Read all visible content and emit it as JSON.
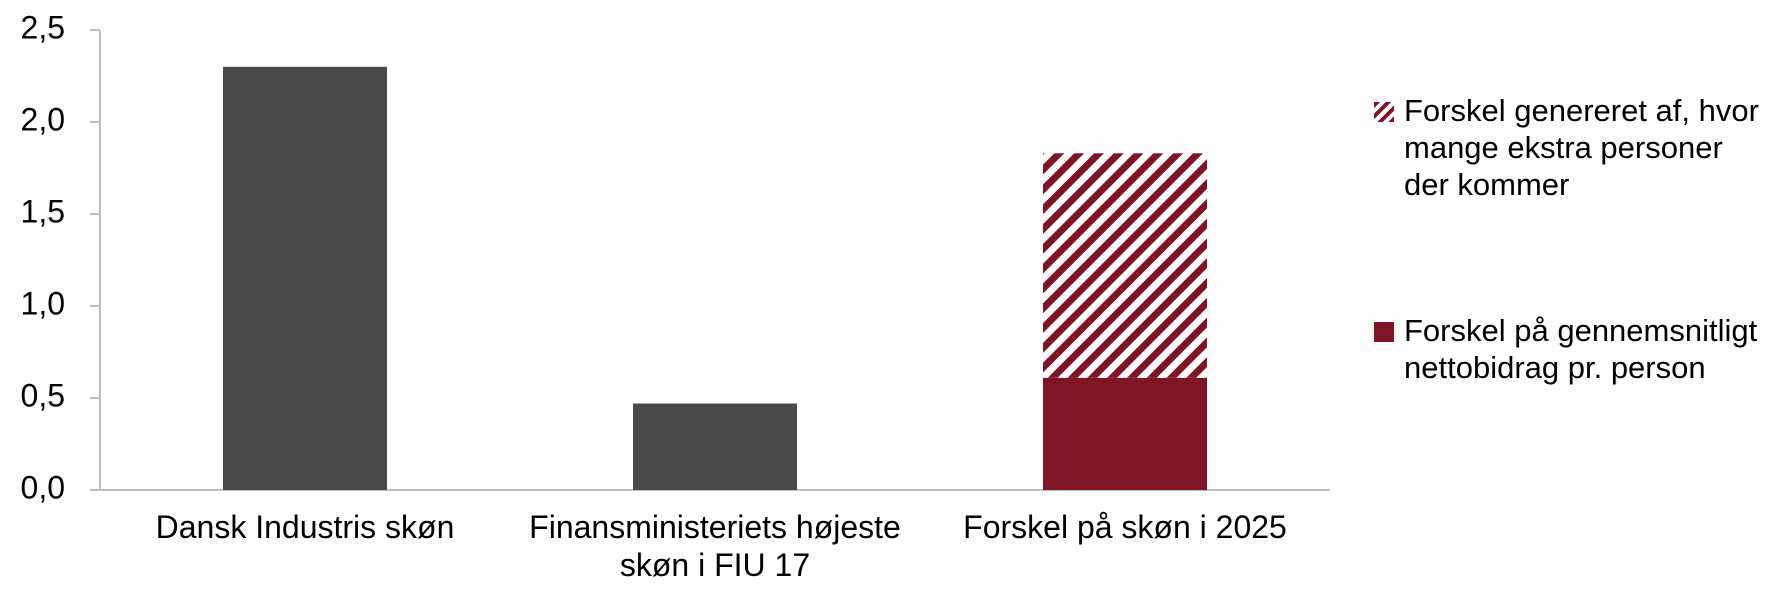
{
  "chart_data": {
    "type": "bar",
    "categories": [
      "Dansk Industris skøn",
      "Finansministeriets højeste skøn i FIU 17",
      "Forskel på skøn i 2025"
    ],
    "values": [
      2.3,
      0.47,
      null
    ],
    "color": "#494949",
    "series": [
      {
        "name": "Forskel på gennemsnitligt nettobidrag pr. person",
        "color": "#7f1424",
        "values": [
          null,
          null,
          0.61
        ]
      },
      {
        "name": "Forskel genereret af, hvor mange ekstra personer der kommer",
        "color": "#7f1424",
        "pattern": "hatch",
        "values": [
          null,
          null,
          1.22
        ]
      }
    ],
    "stacked": true,
    "ylim": [
      0,
      2.5
    ],
    "yticks": [
      {
        "value": 0,
        "label": "0,0"
      },
      {
        "value": 0.5,
        "label": "0,5"
      },
      {
        "value": 1,
        "label": "1,0"
      },
      {
        "value": 1.5,
        "label": "1,5"
      },
      {
        "value": 2,
        "label": "2,0"
      },
      {
        "value": 2.5,
        "label": "2,5"
      }
    ],
    "grid": false,
    "legend": "right"
  }
}
